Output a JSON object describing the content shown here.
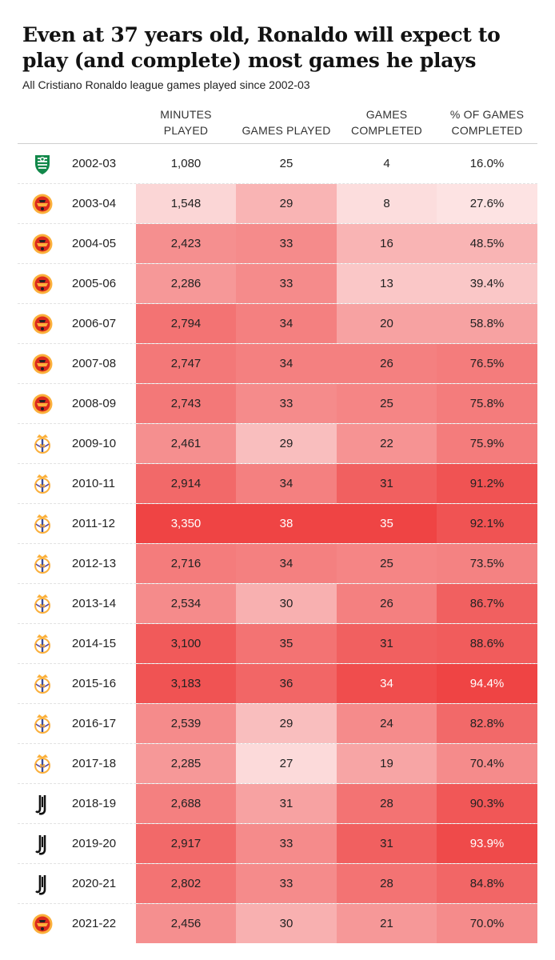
{
  "title": "Even at 37 years old, Ronaldo will expect to play (and complete) most games he plays",
  "subtitle": "All Cristiano Ronaldo league games played since 2002-03",
  "colors": {
    "low": "#ffffff",
    "high": "#ef4444",
    "logo_red": "#da291c",
    "logo_gold": "#fbb03b",
    "sporting_green": "#12884a"
  },
  "chart_data": {
    "type": "table",
    "columns": [
      {
        "key": "minutes",
        "line1": "MINUTES",
        "line2": "PLAYED",
        "min": 1080,
        "max": 3350
      },
      {
        "key": "games",
        "line1": "",
        "line2": "GAMES PLAYED",
        "min": 25,
        "max": 38
      },
      {
        "key": "completed",
        "line1": "GAMES",
        "line2": "COMPLETED",
        "min": 4,
        "max": 35
      },
      {
        "key": "pct",
        "line1": "% OF GAMES",
        "line2": "COMPLETED",
        "min": 16.0,
        "max": 94.4
      }
    ],
    "rows": [
      {
        "club": "sporting",
        "season": "2002-03",
        "minutes": "1,080",
        "games": "25",
        "completed": "4",
        "pct": "16.0%",
        "shade": [
          0,
          0,
          0,
          0
        ]
      },
      {
        "club": "man-utd",
        "season": "2003-04",
        "minutes": "1,548",
        "games": "29",
        "completed": "8",
        "pct": "27.6%",
        "shade": [
          0.22,
          0.4,
          0.18,
          0.15
        ]
      },
      {
        "club": "man-utd",
        "season": "2004-05",
        "minutes": "2,423",
        "games": "33",
        "completed": "16",
        "pct": "48.5%",
        "shade": [
          0.6,
          0.62,
          0.4,
          0.4
        ]
      },
      {
        "club": "man-utd",
        "season": "2005-06",
        "minutes": "2,286",
        "games": "33",
        "completed": "13",
        "pct": "39.4%",
        "shade": [
          0.55,
          0.62,
          0.3,
          0.3
        ]
      },
      {
        "club": "man-utd",
        "season": "2006-07",
        "minutes": "2,794",
        "games": "34",
        "completed": "20",
        "pct": "58.8%",
        "shade": [
          0.75,
          0.68,
          0.5,
          0.5
        ]
      },
      {
        "club": "man-utd",
        "season": "2007-08",
        "minutes": "2,747",
        "games": "34",
        "completed": "26",
        "pct": "76.5%",
        "shade": [
          0.72,
          0.68,
          0.68,
          0.7
        ]
      },
      {
        "club": "man-utd",
        "season": "2008-09",
        "minutes": "2,743",
        "games": "33",
        "completed": "25",
        "pct": "75.8%",
        "shade": [
          0.72,
          0.62,
          0.65,
          0.7
        ]
      },
      {
        "club": "real-madrid",
        "season": "2009-10",
        "minutes": "2,461",
        "games": "29",
        "completed": "22",
        "pct": "75.9%",
        "shade": [
          0.6,
          0.35,
          0.58,
          0.7
        ]
      },
      {
        "club": "real-madrid",
        "season": "2010-11",
        "minutes": "2,914",
        "games": "34",
        "completed": "31",
        "pct": "91.2%",
        "shade": [
          0.8,
          0.68,
          0.85,
          0.92
        ]
      },
      {
        "club": "real-madrid",
        "season": "2011-12",
        "minutes": "3,350",
        "games": "38",
        "completed": "35",
        "pct": "92.1%",
        "shade": [
          1,
          1,
          1,
          0.92
        ]
      },
      {
        "club": "real-madrid",
        "season": "2012-13",
        "minutes": "2,716",
        "games": "34",
        "completed": "25",
        "pct": "73.5%",
        "shade": [
          0.7,
          0.68,
          0.65,
          0.67
        ]
      },
      {
        "club": "real-madrid",
        "season": "2013-14",
        "minutes": "2,534",
        "games": "30",
        "completed": "26",
        "pct": "86.7%",
        "shade": [
          0.62,
          0.42,
          0.68,
          0.85
        ]
      },
      {
        "club": "real-madrid",
        "season": "2014-15",
        "minutes": "3,100",
        "games": "35",
        "completed": "31",
        "pct": "88.6%",
        "shade": [
          0.88,
          0.75,
          0.85,
          0.87
        ]
      },
      {
        "club": "real-madrid",
        "season": "2015-16",
        "minutes": "3,183",
        "games": "36",
        "completed": "34",
        "pct": "94.4%",
        "shade": [
          0.92,
          0.82,
          0.95,
          1
        ]
      },
      {
        "club": "real-madrid",
        "season": "2016-17",
        "minutes": "2,539",
        "games": "29",
        "completed": "24",
        "pct": "82.8%",
        "shade": [
          0.62,
          0.35,
          0.62,
          0.8
        ]
      },
      {
        "club": "real-madrid",
        "season": "2017-18",
        "minutes": "2,285",
        "games": "27",
        "completed": "19",
        "pct": "70.4%",
        "shade": [
          0.55,
          0.2,
          0.48,
          0.62
        ]
      },
      {
        "club": "juventus",
        "season": "2018-19",
        "minutes": "2,688",
        "games": "31",
        "completed": "28",
        "pct": "90.3%",
        "shade": [
          0.68,
          0.5,
          0.75,
          0.9
        ]
      },
      {
        "club": "juventus",
        "season": "2019-20",
        "minutes": "2,917",
        "games": "33",
        "completed": "31",
        "pct": "93.9%",
        "shade": [
          0.8,
          0.62,
          0.85,
          0.97
        ]
      },
      {
        "club": "juventus",
        "season": "2020-21",
        "minutes": "2,802",
        "games": "33",
        "completed": "28",
        "pct": "84.8%",
        "shade": [
          0.75,
          0.62,
          0.75,
          0.82
        ]
      },
      {
        "club": "man-utd",
        "season": "2021-22",
        "minutes": "2,456",
        "games": "30",
        "completed": "21",
        "pct": "70.0%",
        "shade": [
          0.6,
          0.42,
          0.55,
          0.62
        ]
      }
    ]
  }
}
